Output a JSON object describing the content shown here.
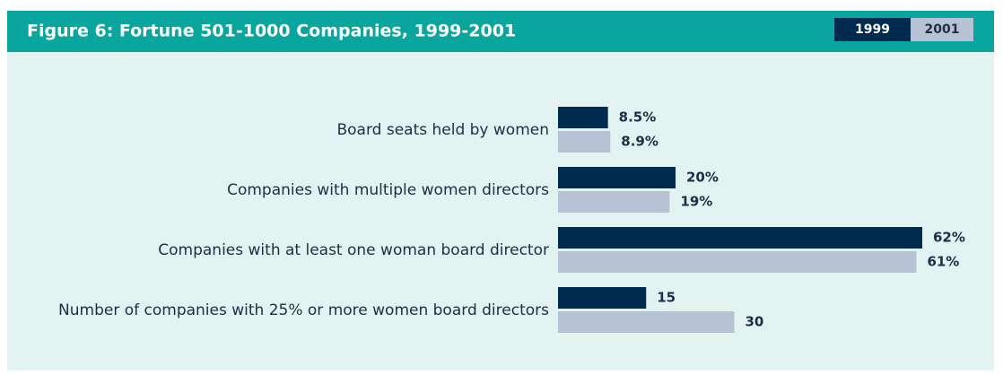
{
  "chart_data": {
    "type": "barh",
    "title": "Figure 6: Fortune 501-1000 Companies, 1999-2001",
    "categories": [
      "Board seats held by women",
      "Companies with multiple women directors",
      "Companies with at least one woman board director",
      "Number of companies with 25% or more women board directors"
    ],
    "series": [
      {
        "name": "1999",
        "color": "#002a4e",
        "values": [
          8.5,
          20,
          62,
          15
        ],
        "value_labels": [
          "8.5%",
          "20%",
          "62%",
          "15"
        ]
      },
      {
        "name": "2001",
        "color": "#b7c2d5",
        "values": [
          8.9,
          19,
          61,
          30
        ],
        "value_labels": [
          "8.9%",
          "19%",
          "61%",
          "30"
        ]
      }
    ]
  }
}
